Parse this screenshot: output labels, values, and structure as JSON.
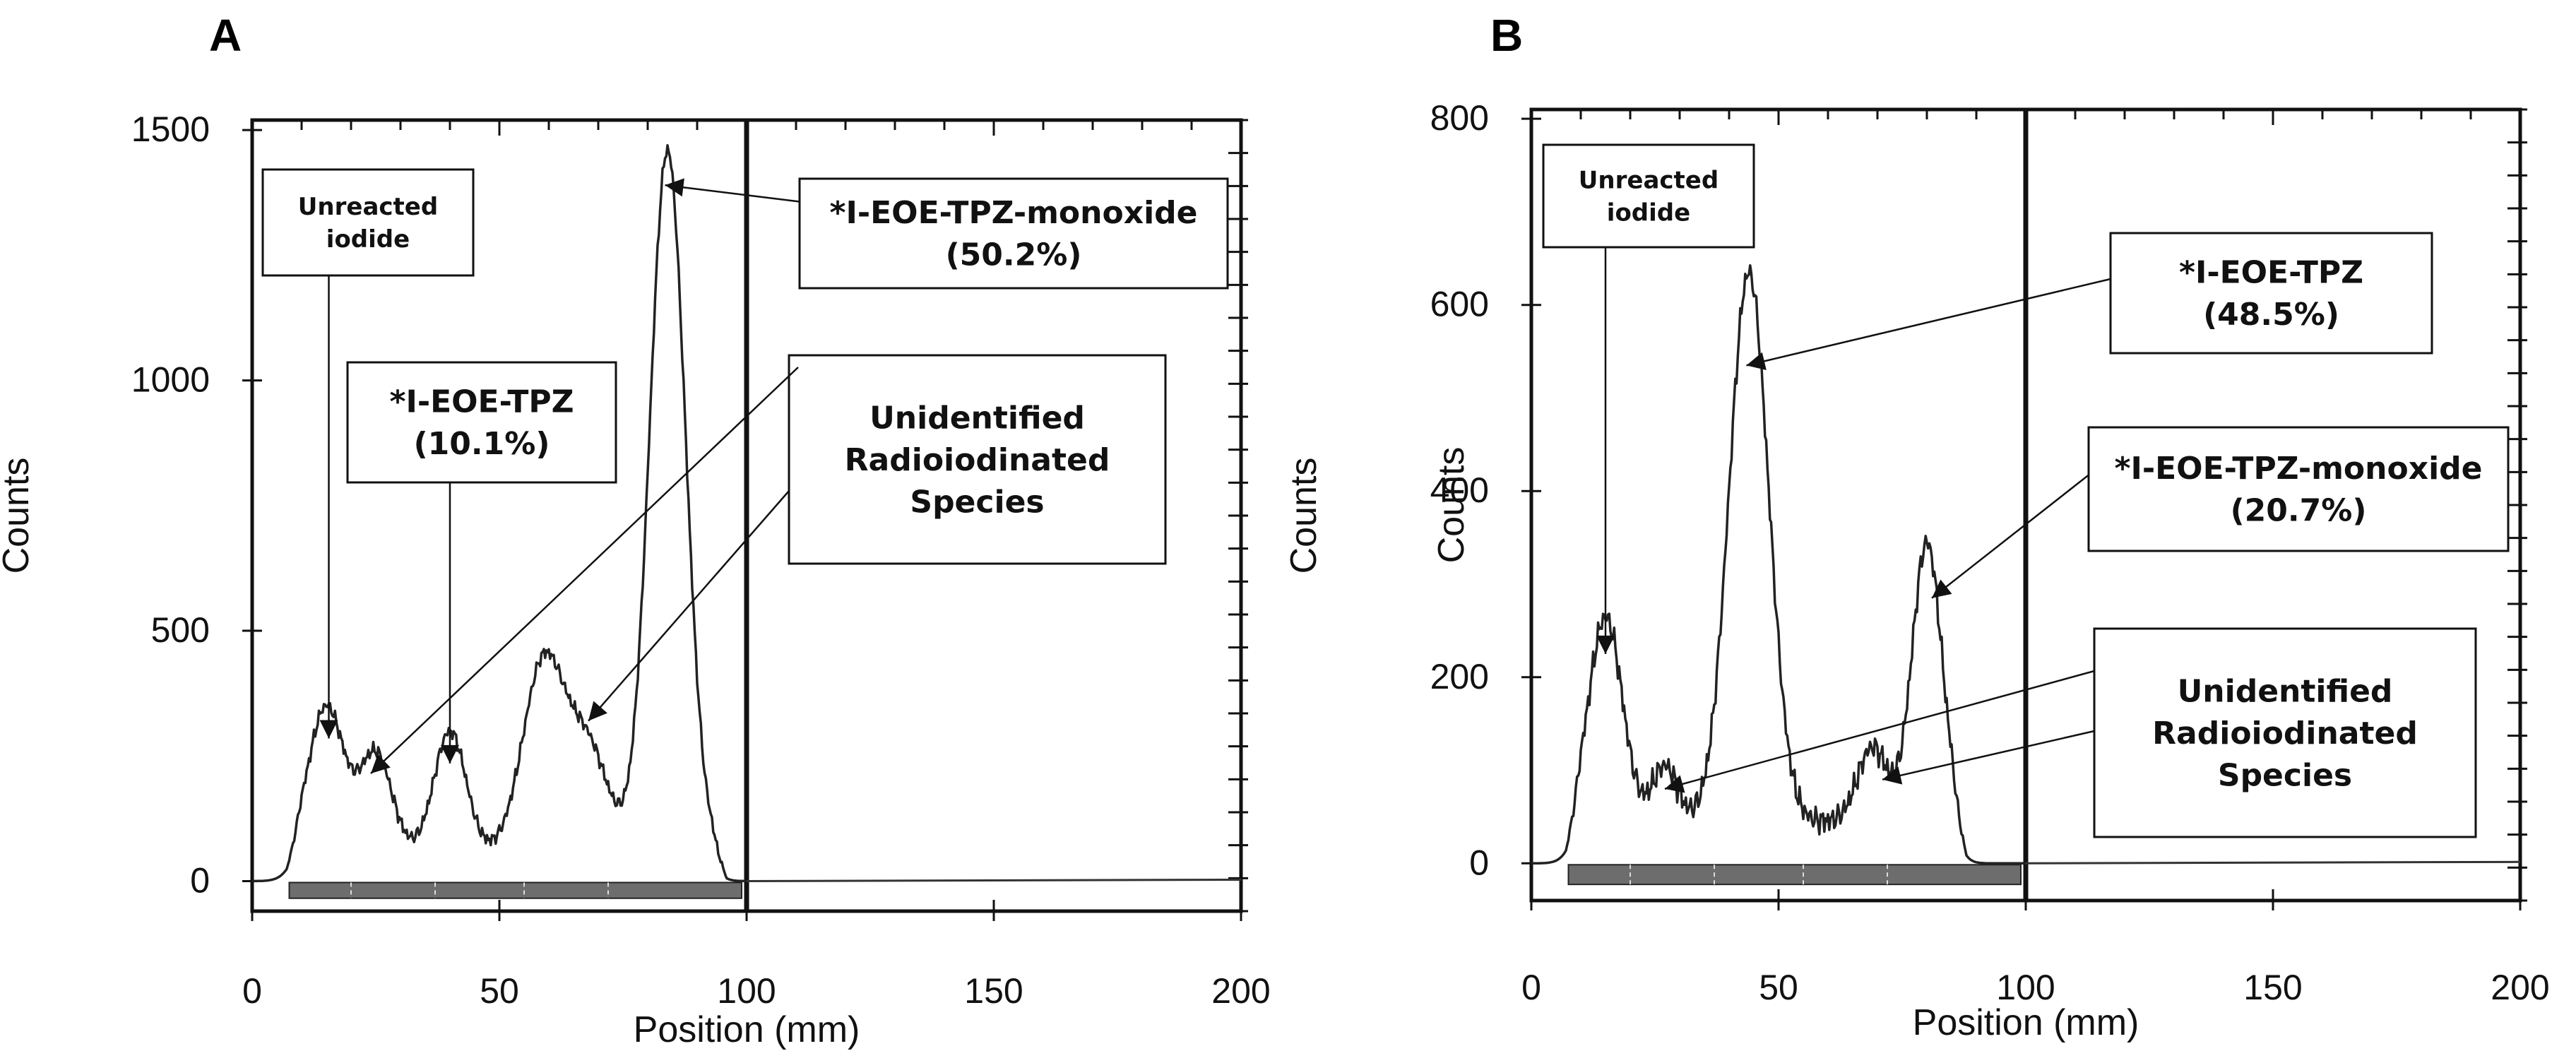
{
  "chart_data": [
    {
      "panel": "A",
      "type": "line",
      "xlabel": "Position (mm)",
      "ylabel": "Counts",
      "xlim": [
        0,
        200
      ],
      "ylim": [
        -60,
        1520
      ],
      "xticks": [
        0,
        50,
        100,
        150,
        200
      ],
      "yticks": [
        0,
        500,
        1000,
        1500
      ],
      "peaks": [
        {
          "x": 15,
          "y": 290,
          "w": 3.6
        },
        {
          "x": 25,
          "y": 195,
          "w": 3.2
        },
        {
          "x": 40,
          "y": 240,
          "w": 3.2
        },
        {
          "x": 59,
          "y": 380,
          "w": 4.2
        },
        {
          "x": 68,
          "y": 200,
          "w": 4.0
        },
        {
          "x": 84,
          "y": 1400,
          "w": 3.6
        }
      ],
      "baseline": {
        "from": 7,
        "to": 96,
        "level": 60
      },
      "annotations": [
        {
          "lines": [
            "Unreacted",
            "iodide"
          ],
          "arrow_to": {
            "x": 15.5,
            "y": 285
          }
        },
        {
          "lines": [
            "*I-EOE-TPZ",
            "(10.1%)"
          ],
          "arrow_to": {
            "x": 40,
            "y": 235
          }
        },
        {
          "lines": [
            "*I-EOE-TPZ-monoxide",
            "(50.2%)"
          ],
          "arrow_to": {
            "x": 83.5,
            "y": 1390
          }
        },
        {
          "lines": [
            "Unidentified",
            "Radioiodinated",
            "Species"
          ],
          "arrows_to": [
            {
              "x": 24,
              "y": 215
            },
            {
              "x": 68,
              "y": 320
            }
          ]
        }
      ]
    },
    {
      "panel": "B",
      "type": "line",
      "xlabel": "Position (mm)",
      "ylabel": "Counts",
      "xlim": [
        0,
        200
      ],
      "ylim": [
        -40,
        810
      ],
      "xticks": [
        0,
        50,
        100,
        150,
        200
      ],
      "yticks": [
        0,
        200,
        400,
        600,
        800
      ],
      "peaks": [
        {
          "x": 15,
          "y": 220,
          "w": 3.4
        },
        {
          "x": 27,
          "y": 60,
          "w": 2.5
        },
        {
          "x": 44,
          "y": 590,
          "w": 4.0
        },
        {
          "x": 69,
          "y": 80,
          "w": 3.0
        },
        {
          "x": 80,
          "y": 300,
          "w": 3.0
        }
      ],
      "baseline": {
        "from": 7,
        "to": 88,
        "level": 45
      },
      "annotations": [
        {
          "lines": [
            "Unreacted",
            "iodide"
          ],
          "arrow_to": {
            "x": 15,
            "y": 225
          }
        },
        {
          "lines": [
            "*I-EOE-TPZ",
            "(48.5%)"
          ],
          "arrow_to": {
            "x": 43.5,
            "y": 535
          }
        },
        {
          "lines": [
            "*I-EOE-TPZ-monoxide",
            "(20.7%)"
          ],
          "arrow_to": {
            "x": 81,
            "y": 285
          }
        },
        {
          "lines": [
            "Unidentified",
            "Radioiodinated",
            "Species"
          ],
          "arrows_to": [
            {
              "x": 27,
              "y": 80
            },
            {
              "x": 71,
              "y": 90
            }
          ]
        }
      ]
    }
  ]
}
